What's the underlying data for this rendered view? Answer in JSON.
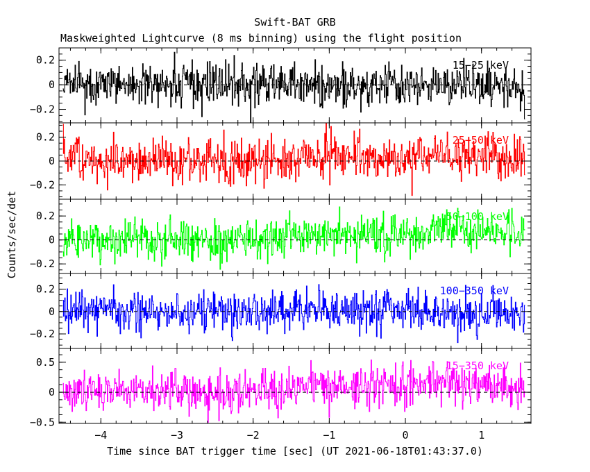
{
  "title": "Swift-BAT GRB",
  "subtitle": "Maskweighted Lightcurve (8 ms binning) using the flight position",
  "xlabel": "Time since BAT trigger time [sec] (UT 2021-06-18T01:43:37.0)",
  "ylabel": "Counts/sec/det",
  "chart_data": {
    "type": "line",
    "x_range": [
      -4.55,
      1.65
    ],
    "x_ticks": [
      -4,
      -3,
      -2,
      -1,
      0,
      1
    ],
    "x_tick_labels": [
      "−4",
      "−3",
      "−2",
      "−1",
      "0",
      "1"
    ],
    "data_x_range": [
      -4.5,
      1.57
    ],
    "bin_width_sec": 0.008,
    "panels": [
      {
        "name": "15−25 keV",
        "color": "#000000",
        "ylim": [
          -0.31,
          0.3
        ],
        "y_ticks": [
          -0.2,
          0,
          0.2
        ],
        "y_tick_labels": [
          "−0.2",
          "0",
          "0.2"
        ],
        "noise_sigma": 0.085,
        "envelope": [
          [
            -4.5,
            0.0
          ],
          [
            -1.5,
            0.0
          ],
          [
            1.57,
            0.0
          ]
        ]
      },
      {
        "name": "25−50 keV",
        "color": "#ff0000",
        "ylim": [
          -0.32,
          0.32
        ],
        "y_ticks": [
          -0.2,
          0,
          0.2
        ],
        "y_tick_labels": [
          "−0.2",
          "0",
          "0.2"
        ],
        "noise_sigma": 0.09,
        "envelope": [
          [
            -4.5,
            0.01
          ],
          [
            -1.6,
            0.0
          ],
          [
            -1.45,
            0.05
          ],
          [
            1.57,
            0.04
          ]
        ]
      },
      {
        "name": "50−100 keV",
        "color": "#00ff00",
        "ylim": [
          -0.28,
          0.34
        ],
        "y_ticks": [
          -0.2,
          0,
          0.2
        ],
        "y_tick_labels": [
          "−0.2",
          "0",
          "0.2"
        ],
        "noise_sigma": 0.085,
        "envelope": [
          [
            -4.5,
            0.0
          ],
          [
            -1.6,
            0.0
          ],
          [
            -1.4,
            0.05
          ],
          [
            0.2,
            0.05
          ],
          [
            0.4,
            0.1
          ],
          [
            1.57,
            0.05
          ]
        ]
      },
      {
        "name": "100−350 keV",
        "color": "#0000ff",
        "ylim": [
          -0.33,
          0.34
        ],
        "y_ticks": [
          -0.2,
          0,
          0.2
        ],
        "y_tick_labels": [
          "−0.2",
          "0",
          "0.2"
        ],
        "noise_sigma": 0.09,
        "envelope": [
          [
            -4.5,
            0.0
          ],
          [
            1.57,
            0.0
          ]
        ]
      },
      {
        "name": "15−350 keV",
        "color": "#ff00ff",
        "ylim": [
          -0.52,
          0.73
        ],
        "y_ticks": [
          -0.5,
          0,
          0.5
        ],
        "y_tick_labels": [
          "−0.5",
          "0",
          "0.5"
        ],
        "noise_sigma": 0.16,
        "envelope": [
          [
            -4.5,
            0.0
          ],
          [
            -1.6,
            0.02
          ],
          [
            -1.4,
            0.12
          ],
          [
            0.0,
            0.1
          ],
          [
            0.3,
            0.2
          ],
          [
            1.57,
            0.05
          ]
        ]
      }
    ]
  }
}
